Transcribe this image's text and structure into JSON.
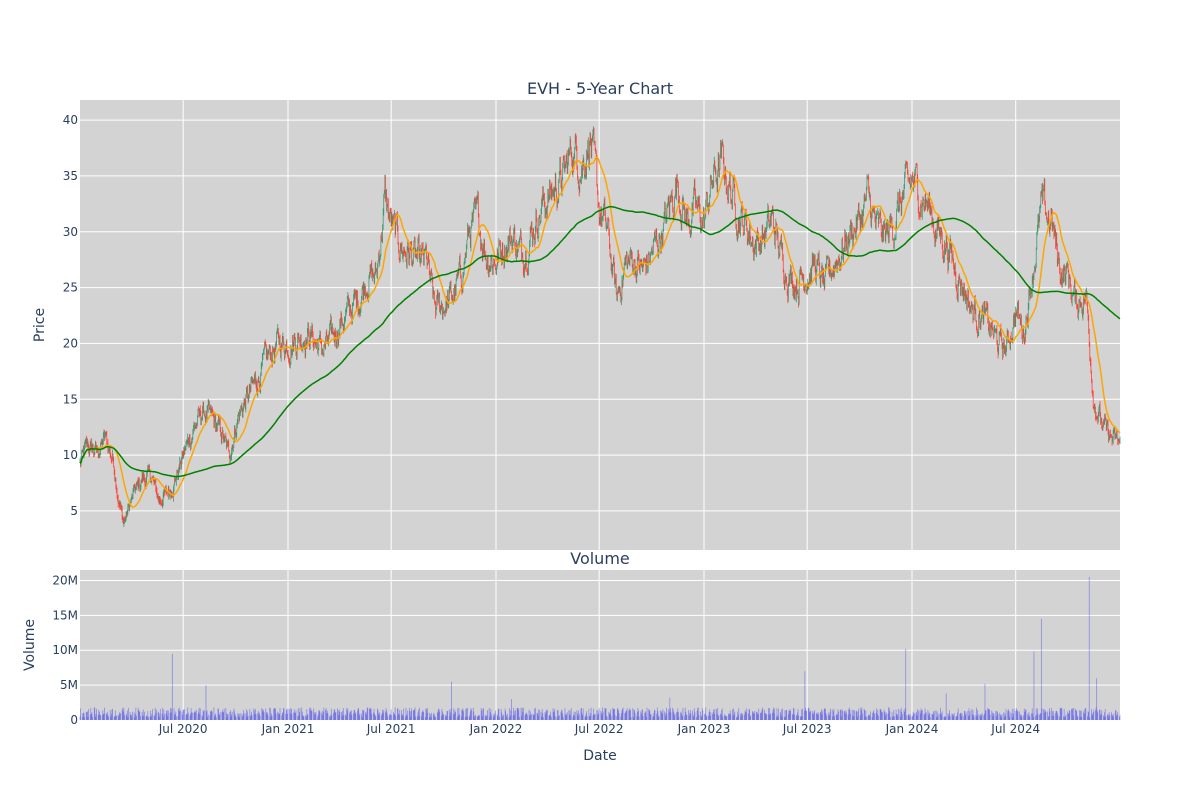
{
  "chart_data": [
    {
      "type": "candlestick",
      "title": "EVH - 5-Year Chart",
      "ylabel": "Price",
      "xlabel": "",
      "ylim": [
        1.5,
        41.8
      ],
      "y_ticks": [
        5,
        10,
        15,
        20,
        25,
        30,
        35,
        40
      ],
      "x_ticks": [
        "Jul 2020",
        "Jan 2021",
        "Jul 2021",
        "Jan 2022",
        "Jul 2022",
        "Jan 2023",
        "Jul 2023",
        "Jan 2024",
        "Jul 2024"
      ],
      "grid": true,
      "colors": {
        "up": "#3D9970",
        "down": "#FF4136",
        "ma_short": "#FFA500",
        "ma_long": "#008000",
        "background": "#D3D3D3"
      },
      "series": [
        {
          "kind": "close",
          "x": [
            "2020-01-02",
            "2020-01-15",
            "2020-02-01",
            "2020-02-15",
            "2020-03-01",
            "2020-03-10",
            "2020-03-18",
            "2020-03-25",
            "2020-04-05",
            "2020-04-20",
            "2020-05-05",
            "2020-05-20",
            "2020-06-01",
            "2020-06-15",
            "2020-07-01",
            "2020-07-20",
            "2020-08-05",
            "2020-08-20",
            "2020-09-05",
            "2020-09-20",
            "2020-10-05",
            "2020-10-20",
            "2020-11-01",
            "2020-11-15",
            "2020-12-01",
            "2020-12-15",
            "2021-01-01",
            "2021-01-20",
            "2021-02-05",
            "2021-02-20",
            "2021-03-05",
            "2021-03-20",
            "2021-04-05",
            "2021-04-20",
            "2021-05-05",
            "2021-05-20",
            "2021-06-05",
            "2021-06-20",
            "2021-07-05",
            "2021-07-20",
            "2021-08-05",
            "2021-08-20",
            "2021-09-01",
            "2021-09-15",
            "2021-10-01",
            "2021-10-15",
            "2021-11-01",
            "2021-11-15",
            "2021-12-01",
            "2021-12-15",
            "2022-01-01",
            "2022-01-15",
            "2022-02-01",
            "2022-02-15",
            "2022-03-01",
            "2022-03-15",
            "2022-04-01",
            "2022-04-15",
            "2022-05-01",
            "2022-05-15",
            "2022-06-01",
            "2022-06-15",
            "2022-07-01",
            "2022-07-15",
            "2022-08-01",
            "2022-08-15",
            "2022-09-01",
            "2022-09-15",
            "2022-10-01",
            "2022-10-15",
            "2022-11-01",
            "2022-11-15",
            "2022-12-01",
            "2022-12-15",
            "2023-01-01",
            "2023-01-15",
            "2023-02-01",
            "2023-02-15",
            "2023-03-01",
            "2023-03-15",
            "2023-04-01",
            "2023-04-15",
            "2023-05-01",
            "2023-05-15",
            "2023-06-01",
            "2023-06-15",
            "2023-07-01",
            "2023-07-15",
            "2023-08-01",
            "2023-08-15",
            "2023-09-01",
            "2023-09-15",
            "2023-10-01",
            "2023-10-15",
            "2023-11-01",
            "2023-11-15",
            "2023-12-01",
            "2023-12-15",
            "2024-01-01",
            "2024-01-15",
            "2024-02-01",
            "2024-02-15",
            "2024-03-01",
            "2024-03-15",
            "2024-04-01",
            "2024-04-15",
            "2024-05-01",
            "2024-05-15",
            "2024-06-01",
            "2024-06-15",
            "2024-07-01",
            "2024-07-15",
            "2024-08-01",
            "2024-08-15",
            "2024-09-01",
            "2024-09-10",
            "2024-09-15",
            "2024-10-01",
            "2024-10-15",
            "2024-11-01",
            "2024-11-15",
            "2024-12-01",
            "2024-12-15",
            "2024-12-31"
          ],
          "values": [
            9.2,
            10.8,
            10.2,
            11.5,
            9.5,
            6.0,
            4.0,
            4.8,
            6.5,
            7.8,
            8.2,
            6.0,
            6.5,
            7.5,
            10.0,
            12.5,
            13.8,
            13.2,
            12.0,
            10.0,
            13.5,
            15.0,
            16.0,
            17.5,
            19.0,
            20.0,
            20.0,
            20.5,
            21.0,
            20.0,
            19.5,
            20.5,
            22.0,
            23.0,
            24.0,
            26.0,
            26.0,
            33.0,
            30.0,
            28.5,
            28.0,
            27.0,
            27.5,
            23.0,
            23.5,
            24.0,
            26.0,
            30.0,
            31.0,
            28.0,
            27.5,
            29.0,
            29.5,
            28.0,
            29.5,
            31.5,
            33.0,
            34.0,
            35.0,
            37.5,
            36.0,
            38.5,
            32.0,
            30.0,
            24.0,
            27.0,
            27.5,
            26.5,
            28.0,
            29.5,
            32.0,
            34.5,
            31.0,
            32.0,
            31.0,
            34.5,
            36.0,
            34.0,
            32.0,
            30.5,
            29.0,
            29.5,
            31.0,
            28.0,
            26.0,
            25.5,
            26.5,
            27.0,
            25.0,
            27.0,
            28.5,
            30.0,
            31.0,
            33.0,
            30.0,
            29.5,
            31.0,
            33.0,
            34.5,
            33.5,
            32.0,
            30.0,
            29.0,
            27.0,
            25.0,
            23.0,
            22.5,
            21.5,
            20.0,
            19.5,
            23.0,
            21.0,
            27.0,
            32.0,
            31.0,
            28.5,
            27.0,
            26.0,
            23.5,
            24.5,
            15.0,
            12.5,
            11.5,
            11.0
          ]
        },
        {
          "name": "",
          "kind": "ma_short"
        },
        {
          "name": "",
          "kind": "ma_long"
        }
      ]
    },
    {
      "type": "bar",
      "title": "Volume",
      "ylabel": "Volume",
      "xlabel": "Date",
      "ylim": [
        0,
        21500000
      ],
      "y_ticks": [
        "0",
        "5M",
        "10M",
        "15M",
        "20M"
      ],
      "x_ticks": [
        "Jul 2020",
        "Jan 2021",
        "Jul 2021",
        "Jan 2022",
        "Jul 2022",
        "Jan 2023",
        "Jul 2023",
        "Jan 2024",
        "Jul 2024"
      ],
      "grid": true,
      "colors": {
        "bar": "#0000FF"
      },
      "typical_volume": 1000000,
      "spikes": [
        {
          "date": "2020-06-12",
          "volume": 9500000
        },
        {
          "date": "2020-08-10",
          "volume": 5000000
        },
        {
          "date": "2021-10-15",
          "volume": 5500000
        },
        {
          "date": "2022-01-28",
          "volume": 3000000
        },
        {
          "date": "2022-11-02",
          "volume": 3200000
        },
        {
          "date": "2023-06-27",
          "volume": 7000000
        },
        {
          "date": "2023-12-21",
          "volume": 10200000
        },
        {
          "date": "2024-03-01",
          "volume": 3800000
        },
        {
          "date": "2024-05-08",
          "volume": 5200000
        },
        {
          "date": "2024-08-02",
          "volume": 9800000
        },
        {
          "date": "2024-08-15",
          "volume": 14500000
        },
        {
          "date": "2024-11-07",
          "volume": 20500000
        },
        {
          "date": "2024-11-20",
          "volume": 6000000
        }
      ]
    }
  ]
}
